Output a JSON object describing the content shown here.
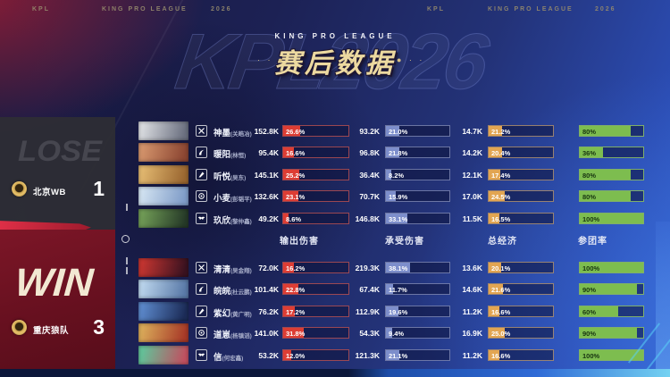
{
  "header": {
    "left": {
      "kpl": "KPL",
      "league": "KING PRO LEAGUE",
      "year": "2026"
    },
    "right": {
      "kpl": "KPL",
      "league": "KING PRO LEAGUE",
      "year": "2026"
    },
    "subtitle": "KING PRO LEAGUE",
    "title": "赛后数据",
    "watermark": "KPL2026",
    "title_color": "#ecd9a0"
  },
  "columns": {
    "output": "输出伤害",
    "taken": "承受伤害",
    "economy": "总经济",
    "participation": "参团率"
  },
  "colors": {
    "output_bar": "#dd3d34",
    "taken_bar": "#7d8ecb",
    "economy_bar": "#e2a552",
    "participation_bar": "#7dbd4f",
    "lose_panel": "#2d2d35",
    "win_panel": "#66101f"
  },
  "teams": [
    {
      "result": "LOSE",
      "name": "北京WB",
      "score": "1",
      "players": [
        {
          "name": "神墨",
          "real": "(关皓冶)",
          "lane": "clash",
          "avatar": [
            "#d8dade",
            "#6b7080"
          ],
          "output_k": "152.8K",
          "output_pct": "26.6%",
          "taken_k": "93.2K",
          "taken_pct": "21.0%",
          "econ_k": "14.7K",
          "econ_pct": "21.2%",
          "rate": "80%"
        },
        {
          "name": "暖阳",
          "real": "(林恒)",
          "lane": "jungle",
          "avatar": [
            "#d2926a",
            "#8c4632"
          ],
          "output_k": "95.4K",
          "output_pct": "16.6%",
          "taken_k": "96.8K",
          "taken_pct": "21.8%",
          "econ_k": "14.2K",
          "econ_pct": "20.4%",
          "rate": "36%"
        },
        {
          "name": "听悦",
          "real": "(吴东)",
          "lane": "mid",
          "avatar": [
            "#e0b66e",
            "#9a6630"
          ],
          "output_k": "145.1K",
          "output_pct": "25.2%",
          "taken_k": "36.4K",
          "taken_pct": "8.2%",
          "econ_k": "12.1K",
          "econ_pct": "17.4%",
          "rate": "80%"
        },
        {
          "name": "小麦",
          "real": "(彭韬平)",
          "lane": "farm",
          "avatar": [
            "#cfe0ef",
            "#7f9cc8"
          ],
          "output_k": "132.6K",
          "output_pct": "23.1%",
          "taken_k": "70.7K",
          "taken_pct": "15.9%",
          "econ_k": "17.0K",
          "econ_pct": "24.5%",
          "rate": "80%"
        },
        {
          "name": "玖欣",
          "real": "(黎仲鑫)",
          "lane": "roam",
          "avatar": [
            "#6f9a55",
            "#263a28"
          ],
          "output_k": "49.2K",
          "output_pct": "8.6%",
          "taken_k": "146.8K",
          "taken_pct": "33.1%",
          "econ_k": "11.5K",
          "econ_pct": "16.5%",
          "rate": "100%"
        }
      ]
    },
    {
      "result": "WIN",
      "name": "重庆狼队",
      "score": "3",
      "players": [
        {
          "name": "清清",
          "real": "(吴金翔)",
          "lane": "clash",
          "avatar": [
            "#c23430",
            "#3a1220"
          ],
          "output_k": "72.0K",
          "output_pct": "16.2%",
          "taken_k": "219.3K",
          "taken_pct": "38.1%",
          "econ_k": "13.6K",
          "econ_pct": "20.1%",
          "rate": "100%"
        },
        {
          "name": "皖皖",
          "real": "(杜云鹏)",
          "lane": "jungle",
          "avatar": [
            "#b8d2ea",
            "#5a7aa8"
          ],
          "output_k": "101.4K",
          "output_pct": "22.8%",
          "taken_k": "67.4K",
          "taken_pct": "11.7%",
          "econ_k": "14.6K",
          "econ_pct": "21.6%",
          "rate": "90%"
        },
        {
          "name": "紫幻",
          "real": "(黄广明)",
          "lane": "mid",
          "avatar": [
            "#5a86c8",
            "#1c2c58"
          ],
          "output_k": "76.2K",
          "output_pct": "17.2%",
          "taken_k": "112.9K",
          "taken_pct": "19.6%",
          "econ_k": "11.2K",
          "econ_pct": "16.6%",
          "rate": "60%"
        },
        {
          "name": "道崽",
          "real": "(杨镇滔)",
          "lane": "farm",
          "avatar": [
            "#d8a858",
            "#a83a28"
          ],
          "output_k": "141.0K",
          "output_pct": "31.8%",
          "taken_k": "54.3K",
          "taken_pct": "9.4%",
          "econ_k": "16.9K",
          "econ_pct": "25.0%",
          "rate": "90%"
        },
        {
          "name": "信",
          "real": "(何宏鑫)",
          "lane": "roam",
          "avatar": [
            "#64c098",
            "#c05060"
          ],
          "output_k": "53.2K",
          "output_pct": "12.0%",
          "taken_k": "121.3K",
          "taken_pct": "21.1%",
          "econ_k": "11.2K",
          "econ_pct": "16.6%",
          "rate": "100%"
        }
      ]
    }
  ]
}
